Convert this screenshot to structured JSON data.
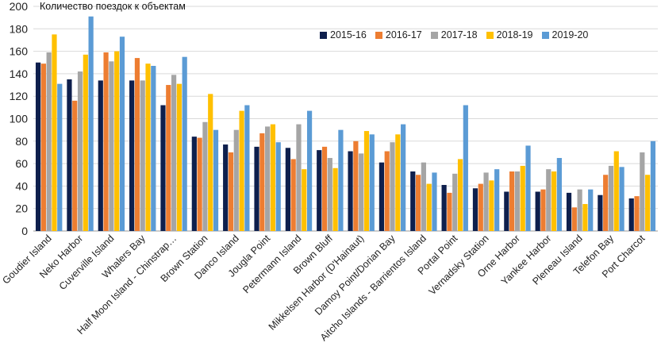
{
  "chart_data": {
    "type": "bar",
    "title": "Количество поездок к объектам",
    "xlabel": "",
    "ylabel": "",
    "ylim": [
      0,
      200
    ],
    "yticks": [
      0,
      20,
      40,
      60,
      80,
      100,
      120,
      140,
      160,
      180,
      200
    ],
    "grid": true,
    "legend_position": "top-right",
    "categories": [
      "Goudier Island",
      "Neko Harbor",
      "Cuverville Island",
      "Whalers Bay",
      "Half Moon Island - Chinstrap…",
      "Brown Station",
      "Danco Island",
      "Jougla Point",
      "Petermann Island",
      "Brown Bluff",
      "Mikkelsen Harbor (D'Hainaut)",
      "Damoy Point/Dorian Bay",
      "Aitcho Islands - Barrientos Island",
      "Portal Point",
      "Vernadsky Station",
      "Orne Harbor",
      "Yankee Harbor",
      "Pleneau Island",
      "Telefon Bay",
      "Port Charcot"
    ],
    "series": [
      {
        "name": "2015-16",
        "color": "#0e1f4d",
        "values": [
          150,
          135,
          134,
          134,
          112,
          84,
          77,
          75,
          74,
          72,
          71,
          61,
          53,
          41,
          38,
          35,
          35,
          34,
          32,
          29
        ]
      },
      {
        "name": "2016-17",
        "color": "#ed7d31",
        "values": [
          149,
          116,
          159,
          154,
          130,
          83,
          70,
          87,
          64,
          75,
          80,
          71,
          50,
          34,
          42,
          53,
          37,
          21,
          50,
          31
        ]
      },
      {
        "name": "2017-18",
        "color": "#a5a5a5",
        "values": [
          159,
          142,
          151,
          134,
          139,
          97,
          90,
          93,
          95,
          65,
          69,
          79,
          61,
          51,
          52,
          53,
          55,
          37,
          58,
          70
        ]
      },
      {
        "name": "2018-19",
        "color": "#ffc000",
        "values": [
          175,
          157,
          160,
          149,
          131,
          122,
          107,
          95,
          55,
          56,
          89,
          86,
          42,
          64,
          45,
          58,
          53,
          24,
          71,
          50
        ]
      },
      {
        "name": "2019-20",
        "color": "#5b9bd5",
        "values": [
          131,
          191,
          173,
          147,
          155,
          90,
          112,
          79,
          107,
          90,
          86,
          95,
          52,
          112,
          55,
          76,
          65,
          37,
          57,
          80
        ]
      }
    ]
  }
}
